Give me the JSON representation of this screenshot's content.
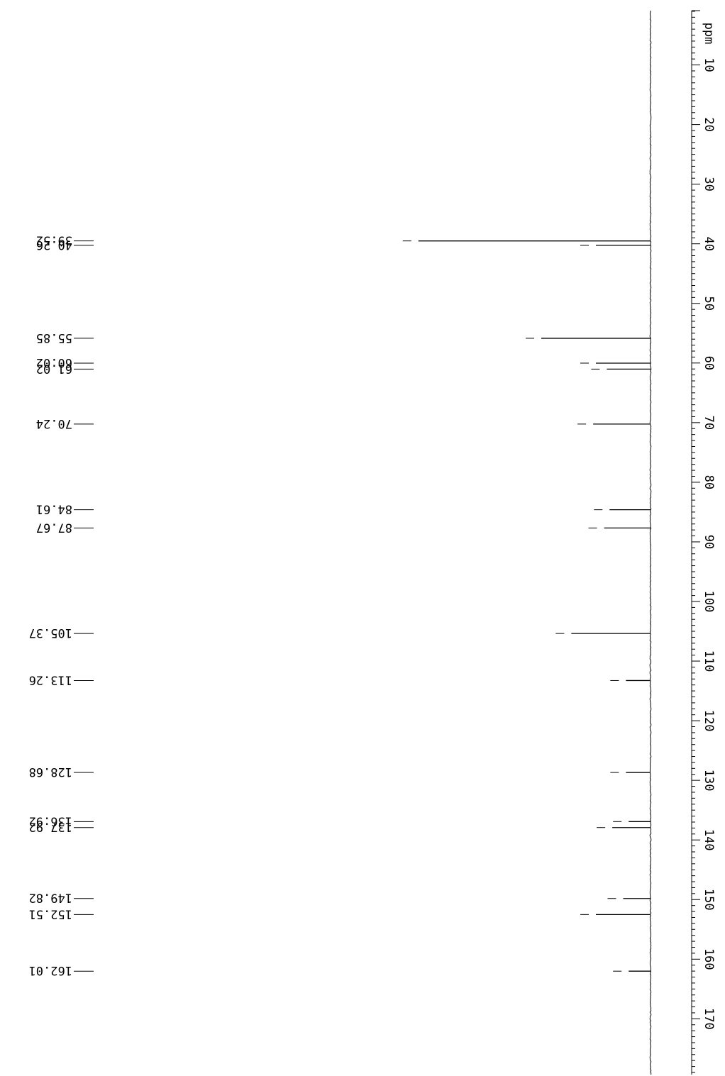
{
  "chart_data": {
    "type": "line",
    "title": "",
    "xlabel": "ppm",
    "ylabel": "",
    "axis_range_ppm": [
      0,
      180
    ],
    "axis_ticks": [
      "10",
      "20",
      "30",
      "40",
      "50",
      "60",
      "70",
      "80",
      "90",
      "100",
      "110",
      "120",
      "130",
      "140",
      "150",
      "160",
      "170"
    ],
    "unit_label": "ppm",
    "peaks": [
      {
        "label": "39.52",
        "ppm": 39.52,
        "intensity": 0.85
      },
      {
        "label": "40.26",
        "ppm": 40.26,
        "intensity": 0.2
      },
      {
        "label": "55.85",
        "ppm": 55.85,
        "intensity": 0.4
      },
      {
        "label": "60.02",
        "ppm": 60.02,
        "intensity": 0.2
      },
      {
        "label": "61.02",
        "ppm": 61.02,
        "intensity": 0.16
      },
      {
        "label": "70.24",
        "ppm": 70.24,
        "intensity": 0.21
      },
      {
        "label": "84.61",
        "ppm": 84.61,
        "intensity": 0.15
      },
      {
        "label": "87.67",
        "ppm": 87.67,
        "intensity": 0.17
      },
      {
        "label": "105.37",
        "ppm": 105.37,
        "intensity": 0.29
      },
      {
        "label": "113.26",
        "ppm": 113.26,
        "intensity": 0.09
      },
      {
        "label": "128.68",
        "ppm": 128.68,
        "intensity": 0.09
      },
      {
        "label": "136.92",
        "ppm": 136.92,
        "intensity": 0.08
      },
      {
        "label": "137.92",
        "ppm": 137.92,
        "intensity": 0.14
      },
      {
        "label": "149.82",
        "ppm": 149.82,
        "intensity": 0.1
      },
      {
        "label": "152.51",
        "ppm": 152.51,
        "intensity": 0.2
      },
      {
        "label": "162.01",
        "ppm": 162.01,
        "intensity": 0.08
      }
    ],
    "grid": false,
    "legend": "none",
    "colors": {
      "trace": "#000000",
      "background": "#ffffff"
    }
  }
}
